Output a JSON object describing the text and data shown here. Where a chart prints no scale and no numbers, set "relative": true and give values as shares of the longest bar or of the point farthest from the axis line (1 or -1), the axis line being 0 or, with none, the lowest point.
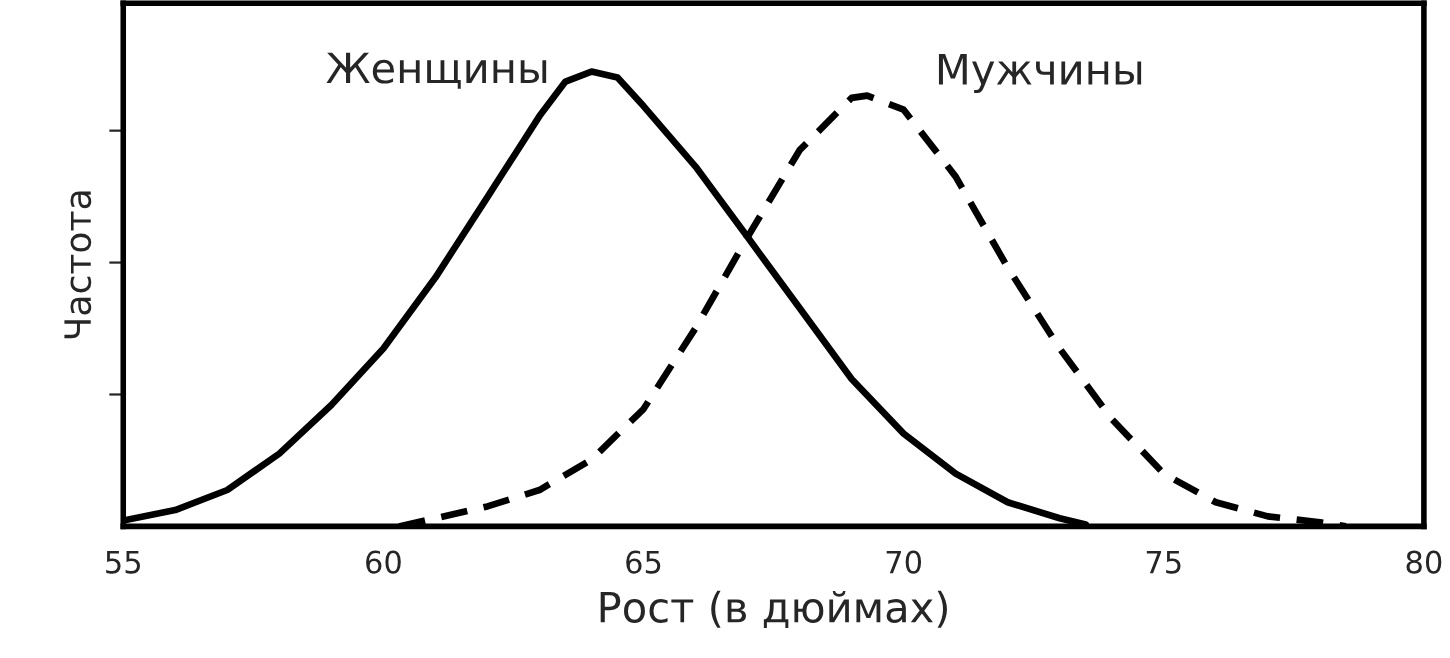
{
  "chart_data": {
    "type": "line",
    "relative": true,
    "xlabel": "Рост (в дюймах)",
    "ylabel": "Частота",
    "xlim": [
      55,
      80
    ],
    "xticks": [
      55,
      60,
      65,
      70,
      75,
      80
    ],
    "tick_labels": "x",
    "grid": false,
    "legend": false,
    "marker": "none",
    "series": [
      {
        "name": "Женщины",
        "color": "#000000",
        "line_style": "solid",
        "x": [
          55,
          56,
          57,
          58,
          59,
          60,
          61,
          62,
          63,
          63.5,
          64,
          64.5,
          65,
          66,
          67,
          68,
          69,
          70,
          71,
          72,
          73,
          73.5
        ],
        "values": [
          0.013,
          0.036,
          0.08,
          0.16,
          0.267,
          0.391,
          0.547,
          0.724,
          0.902,
          0.978,
          1.0,
          0.987,
          0.924,
          0.791,
          0.636,
          0.48,
          0.324,
          0.204,
          0.116,
          0.053,
          0.018,
          0.004
        ]
      },
      {
        "name": "Мужчины",
        "color": "#000000",
        "line_style": "dashed",
        "x": [
          60.3,
          61,
          62,
          63,
          64,
          65,
          66,
          67,
          68,
          69,
          69.3,
          70,
          71,
          72,
          73,
          74,
          75,
          76,
          77,
          78,
          78.5
        ],
        "values": [
          0,
          0.018,
          0.044,
          0.08,
          0.147,
          0.258,
          0.436,
          0.636,
          0.827,
          0.942,
          0.947,
          0.916,
          0.769,
          0.569,
          0.391,
          0.236,
          0.116,
          0.053,
          0.022,
          0.009,
          0
        ]
      }
    ]
  }
}
